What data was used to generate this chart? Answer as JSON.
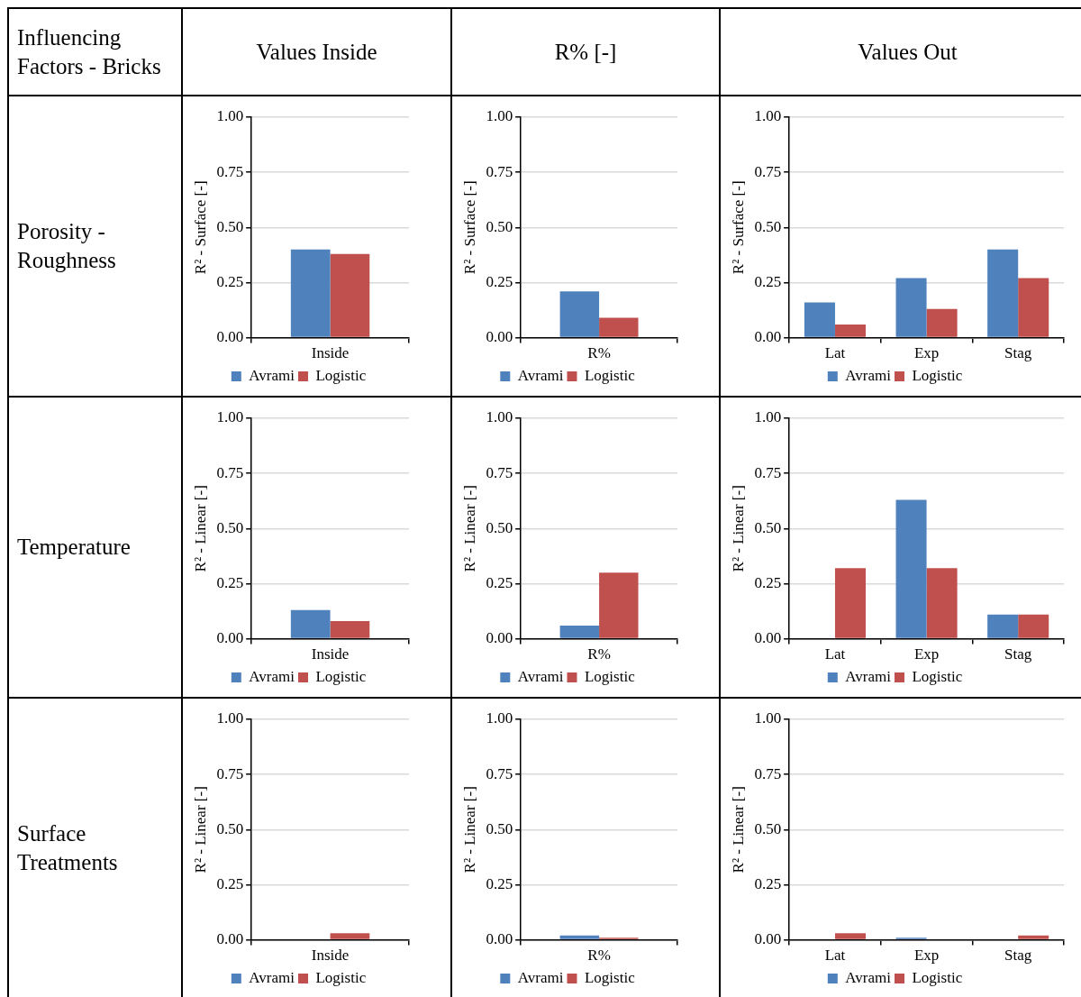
{
  "chart_data": [
    {
      "type": "other",
      "annotations": [
        "Influencing Factors - Bricks",
        "Values Inside",
        "R% [-]",
        "Values Out",
        "Porosity - Roughness",
        "Temperature",
        "Surface Treatments"
      ]
    },
    {
      "type": "bar",
      "categories": [
        "Inside"
      ],
      "ylabel": "R² - Surface [-]",
      "ylim": [
        0,
        1
      ],
      "yticks": [
        {
          "value": 0,
          "label": "0.00"
        },
        {
          "value": 0.25,
          "label": "0.25"
        },
        {
          "value": 0.5,
          "label": "0.50"
        },
        {
          "value": 0.75,
          "label": "0.75"
        },
        {
          "value": 1,
          "label": "1.00"
        }
      ],
      "grid": "y",
      "legend": "bottom",
      "series": [
        {
          "name": "Avrami",
          "color": "#4f81bd",
          "values": [
            0.4
          ]
        },
        {
          "name": "Logistic",
          "color": "#c0504d",
          "values": [
            0.38
          ]
        }
      ]
    },
    {
      "type": "bar",
      "categories": [
        "R%"
      ],
      "ylabel": "R² - Surface [-]",
      "ylim": [
        0,
        1
      ],
      "yticks": [
        {
          "value": 0,
          "label": "0.00"
        },
        {
          "value": 0.25,
          "label": "0.25"
        },
        {
          "value": 0.5,
          "label": "0.50"
        },
        {
          "value": 0.75,
          "label": "0.75"
        },
        {
          "value": 1,
          "label": "1.00"
        }
      ],
      "grid": "y",
      "legend": "bottom",
      "series": [
        {
          "name": "Avrami",
          "color": "#4f81bd",
          "values": [
            0.21
          ]
        },
        {
          "name": "Logistic",
          "color": "#c0504d",
          "values": [
            0.09
          ]
        }
      ]
    },
    {
      "type": "bar",
      "categories": [
        "Lat",
        "Exp",
        "Stag"
      ],
      "ylabel": "R² - Surface [-]",
      "ylim": [
        0,
        1
      ],
      "yticks": [
        {
          "value": 0,
          "label": "0.00"
        },
        {
          "value": 0.25,
          "label": "0.25"
        },
        {
          "value": 0.5,
          "label": "0.50"
        },
        {
          "value": 0.75,
          "label": "0.75"
        },
        {
          "value": 1,
          "label": "1.00"
        }
      ],
      "grid": "y",
      "legend": "bottom",
      "series": [
        {
          "name": "Avrami",
          "color": "#4f81bd",
          "values": [
            0.16,
            0.27,
            0.4
          ]
        },
        {
          "name": "Logistic",
          "color": "#c0504d",
          "values": [
            0.06,
            0.13,
            0.27
          ]
        }
      ]
    },
    {
      "type": "bar",
      "categories": [
        "Inside"
      ],
      "ylabel": "R² - Linear [-]",
      "ylim": [
        0,
        1
      ],
      "yticks": [
        {
          "value": 0,
          "label": "0.00"
        },
        {
          "value": 0.25,
          "label": "0.25"
        },
        {
          "value": 0.5,
          "label": "0.50"
        },
        {
          "value": 0.75,
          "label": "0.75"
        },
        {
          "value": 1,
          "label": "1.00"
        }
      ],
      "grid": "y",
      "legend": "bottom",
      "series": [
        {
          "name": "Avrami",
          "color": "#4f81bd",
          "values": [
            0.13
          ]
        },
        {
          "name": "Logistic",
          "color": "#c0504d",
          "values": [
            0.08
          ]
        }
      ]
    },
    {
      "type": "bar",
      "categories": [
        "R%"
      ],
      "ylabel": "R² - Linear [-]",
      "ylim": [
        0,
        1
      ],
      "yticks": [
        {
          "value": 0,
          "label": "0.00"
        },
        {
          "value": 0.25,
          "label": "0.25"
        },
        {
          "value": 0.5,
          "label": "0.50"
        },
        {
          "value": 0.75,
          "label": "0.75"
        },
        {
          "value": 1,
          "label": "1.00"
        }
      ],
      "grid": "y",
      "legend": "bottom",
      "series": [
        {
          "name": "Avrami",
          "color": "#4f81bd",
          "values": [
            0.06
          ]
        },
        {
          "name": "Logistic",
          "color": "#c0504d",
          "values": [
            0.3
          ]
        }
      ]
    },
    {
      "type": "bar",
      "categories": [
        "Lat",
        "Exp",
        "Stag"
      ],
      "ylabel": "R² - Linear [-]",
      "ylim": [
        0,
        1
      ],
      "yticks": [
        {
          "value": 0,
          "label": "0.00"
        },
        {
          "value": 0.25,
          "label": "0.25"
        },
        {
          "value": 0.5,
          "label": "0.50"
        },
        {
          "value": 0.75,
          "label": "0.75"
        },
        {
          "value": 1,
          "label": "1.00"
        }
      ],
      "grid": "y",
      "legend": "bottom",
      "series": [
        {
          "name": "Avrami",
          "color": "#4f81bd",
          "values": [
            0,
            0.63,
            0.11
          ]
        },
        {
          "name": "Logistic",
          "color": "#c0504d",
          "values": [
            0.32,
            0.32,
            0.11
          ]
        }
      ]
    },
    {
      "type": "bar",
      "categories": [
        "Inside"
      ],
      "ylabel": "R² - Linear [-]",
      "ylim": [
        0,
        1
      ],
      "yticks": [
        {
          "value": 0,
          "label": "0.00"
        },
        {
          "value": 0.25,
          "label": "0.25"
        },
        {
          "value": 0.5,
          "label": "0.50"
        },
        {
          "value": 0.75,
          "label": "0.75"
        },
        {
          "value": 1,
          "label": "1.00"
        }
      ],
      "grid": "y",
      "legend": "bottom",
      "series": [
        {
          "name": "Avrami",
          "color": "#4f81bd",
          "values": [
            0
          ]
        },
        {
          "name": "Logistic",
          "color": "#c0504d",
          "values": [
            0.03
          ]
        }
      ]
    },
    {
      "type": "bar",
      "categories": [
        "R%"
      ],
      "ylabel": "R² - Linear [-]",
      "ylim": [
        0,
        1
      ],
      "yticks": [
        {
          "value": 0,
          "label": "0.00"
        },
        {
          "value": 0.25,
          "label": "0.25"
        },
        {
          "value": 0.5,
          "label": "0.50"
        },
        {
          "value": 0.75,
          "label": "0.75"
        },
        {
          "value": 1,
          "label": "1.00"
        }
      ],
      "grid": "y",
      "legend": "bottom",
      "series": [
        {
          "name": "Avrami",
          "color": "#4f81bd",
          "values": [
            0.02
          ]
        },
        {
          "name": "Logistic",
          "color": "#c0504d",
          "values": [
            0.01
          ]
        }
      ]
    },
    {
      "type": "bar",
      "categories": [
        "Lat",
        "Exp",
        "Stag"
      ],
      "ylabel": "R² - Linear [-]",
      "ylim": [
        0,
        1
      ],
      "yticks": [
        {
          "value": 0,
          "label": "0.00"
        },
        {
          "value": 0.25,
          "label": "0.25"
        },
        {
          "value": 0.5,
          "label": "0.50"
        },
        {
          "value": 0.75,
          "label": "0.75"
        },
        {
          "value": 1,
          "label": "1.00"
        }
      ],
      "grid": "y",
      "legend": "bottom",
      "series": [
        {
          "name": "Avrami",
          "color": "#4f81bd",
          "values": [
            0,
            0.01,
            0
          ]
        },
        {
          "name": "Logistic",
          "color": "#c0504d",
          "values": [
            0.03,
            0,
            0.02
          ]
        }
      ]
    }
  ]
}
